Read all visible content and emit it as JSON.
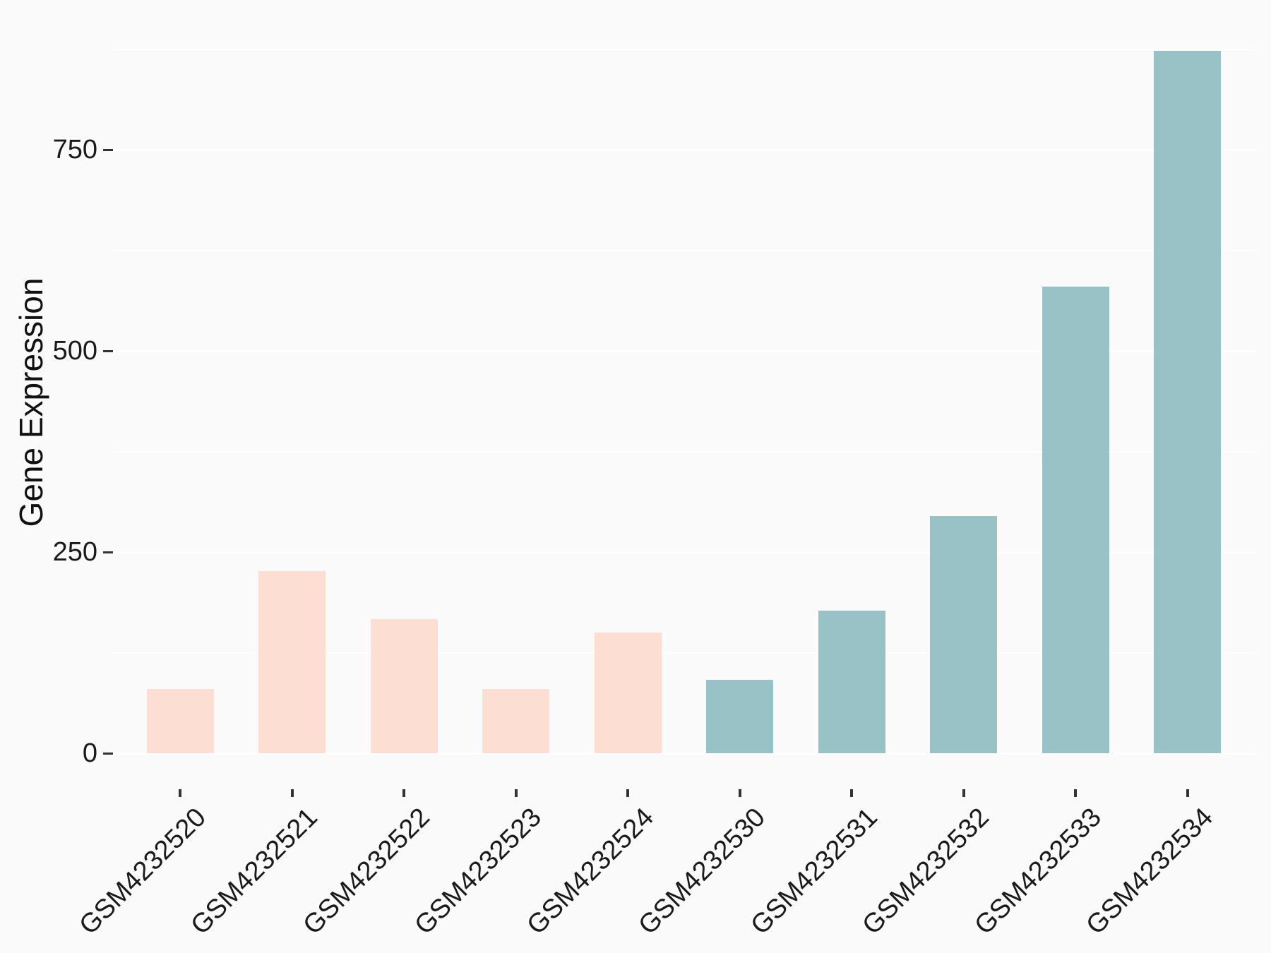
{
  "chart_data": {
    "type": "bar",
    "title": "",
    "xlabel": "",
    "ylabel": "Gene Expression",
    "categories": [
      "GSM4232520",
      "GSM4232521",
      "GSM4232522",
      "GSM4232523",
      "GSM4232524",
      "GSM4232530",
      "GSM4232531",
      "GSM4232532",
      "GSM4232533",
      "GSM4232534"
    ],
    "values": [
      80,
      226,
      167,
      80,
      150,
      91,
      177,
      295,
      580,
      873
    ],
    "bar_groups": [
      "pink",
      "pink",
      "pink",
      "pink",
      "pink",
      "teal",
      "teal",
      "teal",
      "teal",
      "teal"
    ],
    "colors": {
      "pink": "#FCDED2",
      "teal": "#99C2C6"
    },
    "yticks": [
      0,
      250,
      500,
      750
    ],
    "ytick_labels": [
      "0",
      "250",
      "500",
      "750"
    ],
    "minor_yticks": [
      125,
      375,
      625,
      875
    ],
    "ylim": [
      0,
      920
    ],
    "legend": "none",
    "grid": "horizontal white major and minor gridlines on light gray panel",
    "panel_background": "#FAFAFA",
    "axis_text_color": "#1A1A1A",
    "tick_mark_color": "#333333"
  }
}
